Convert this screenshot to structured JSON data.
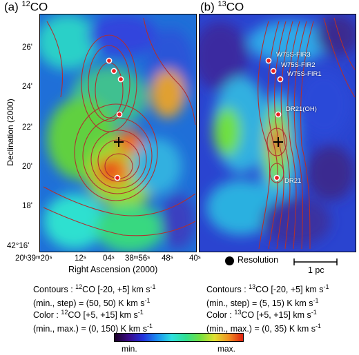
{
  "panel_a": {
    "label": "(a)",
    "mass": "12",
    "mol": "CO",
    "caption": {
      "contours_prefix": "Contours :",
      "contours_mass": "12",
      "contours_rest": "CO [-20, +5] km s",
      "contours_exp": "-1",
      "contours_range": "(min., step) = (50, 50) K km s",
      "contours_range_exp": "-1",
      "color_prefix": "Color :",
      "color_mass": "12",
      "color_rest": "CO [+5, +15] km s",
      "color_exp": "-1",
      "color_range": "(min., max.) = (0, 150) K km s",
      "color_range_exp": "-1"
    }
  },
  "panel_b": {
    "label": "(b)",
    "mass": "13",
    "mol": "CO",
    "sources": [
      "W75S-FIR3",
      "W75S-FIR2",
      "W75S-FIR1",
      "DR21(OH)",
      "DR21"
    ],
    "caption": {
      "contours_prefix": "Contours :",
      "contours_mass": "13",
      "contours_rest": "CO [-20, +5] km s",
      "contours_exp": "-1",
      "contours_range": "(min., step) = (5, 15) K km s",
      "contours_range_exp": "-1",
      "color_prefix": "Color :",
      "color_mass": "13",
      "color_rest": "CO [+5, +15] km s",
      "color_exp": "-1",
      "color_range": "(min., max.) = (0, 35) K km s",
      "color_range_exp": "-1"
    }
  },
  "axes": {
    "ylabel": "Declination (2000)",
    "xlabel": "Right Ascension (2000)",
    "yticks": [
      "26'",
      "24'",
      "22'",
      "20'",
      "18'",
      "42°16'"
    ],
    "xticks_a": [
      "20h39m20s",
      "12s",
      "04s",
      "38m56s",
      "48s",
      "40s"
    ],
    "xticks_a_display": [
      "20ʰ39ᵐ20ˢ",
      "12ˢ",
      "04ˢ",
      "38ᵐ56ˢ",
      "48ˢ",
      "40ˢ"
    ]
  },
  "resolution_label": "Resolution",
  "scalebar_label": "1 pc",
  "colorbar": {
    "min_label": "min.",
    "max_label": "max.",
    "colors": [
      "#1b0026",
      "#3a0a8a",
      "#2233dd",
      "#1a8ff0",
      "#2ee0e0",
      "#30e090",
      "#74e040",
      "#e0e030",
      "#f09020",
      "#e02010"
    ]
  },
  "colors": {
    "contour": "#b03030",
    "marker_fill": "#e82020",
    "marker_ring": "#ffffff"
  }
}
